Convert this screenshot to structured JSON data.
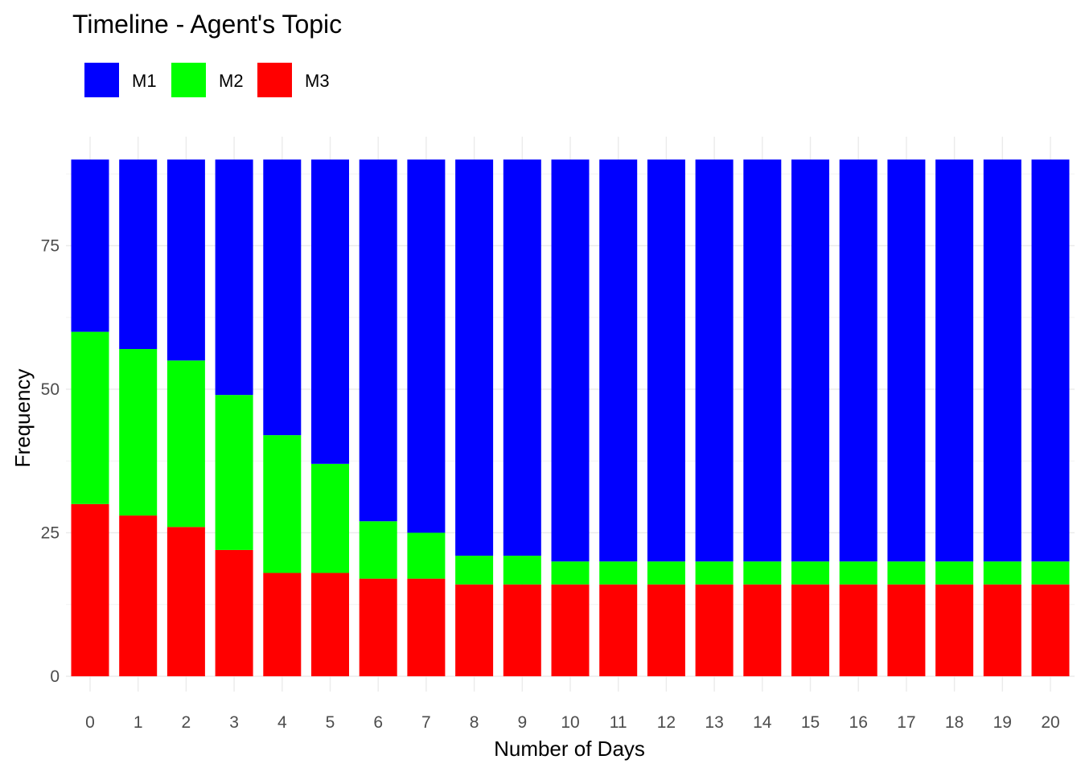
{
  "chart_data": {
    "type": "bar",
    "stacked": true,
    "title": "Timeline - Agent's Topic",
    "xlabel": "Number of Days",
    "ylabel": "Frequency",
    "categories": [
      "0",
      "1",
      "2",
      "3",
      "4",
      "5",
      "6",
      "7",
      "8",
      "9",
      "10",
      "11",
      "12",
      "13",
      "14",
      "15",
      "16",
      "17",
      "18",
      "19",
      "20"
    ],
    "yticks": [
      0,
      25,
      50,
      75
    ],
    "ylim": [
      0,
      90
    ],
    "grid": true,
    "legend_position": "top-left",
    "series": [
      {
        "name": "M3",
        "color": "#ff0000",
        "values": [
          30,
          28,
          26,
          22,
          18,
          18,
          17,
          17,
          16,
          16,
          16,
          16,
          16,
          16,
          16,
          16,
          16,
          16,
          16,
          16,
          16
        ]
      },
      {
        "name": "M2",
        "color": "#00ff00",
        "values": [
          30,
          29,
          29,
          27,
          24,
          19,
          10,
          8,
          5,
          5,
          4,
          4,
          4,
          4,
          4,
          4,
          4,
          4,
          4,
          4,
          4
        ]
      },
      {
        "name": "M1",
        "color": "#0000ff",
        "values": [
          30,
          33,
          35,
          41,
          48,
          53,
          63,
          65,
          69,
          69,
          70,
          70,
          70,
          70,
          70,
          70,
          70,
          70,
          70,
          70,
          70
        ]
      }
    ],
    "legend_order": [
      "M1",
      "M2",
      "M3"
    ]
  }
}
